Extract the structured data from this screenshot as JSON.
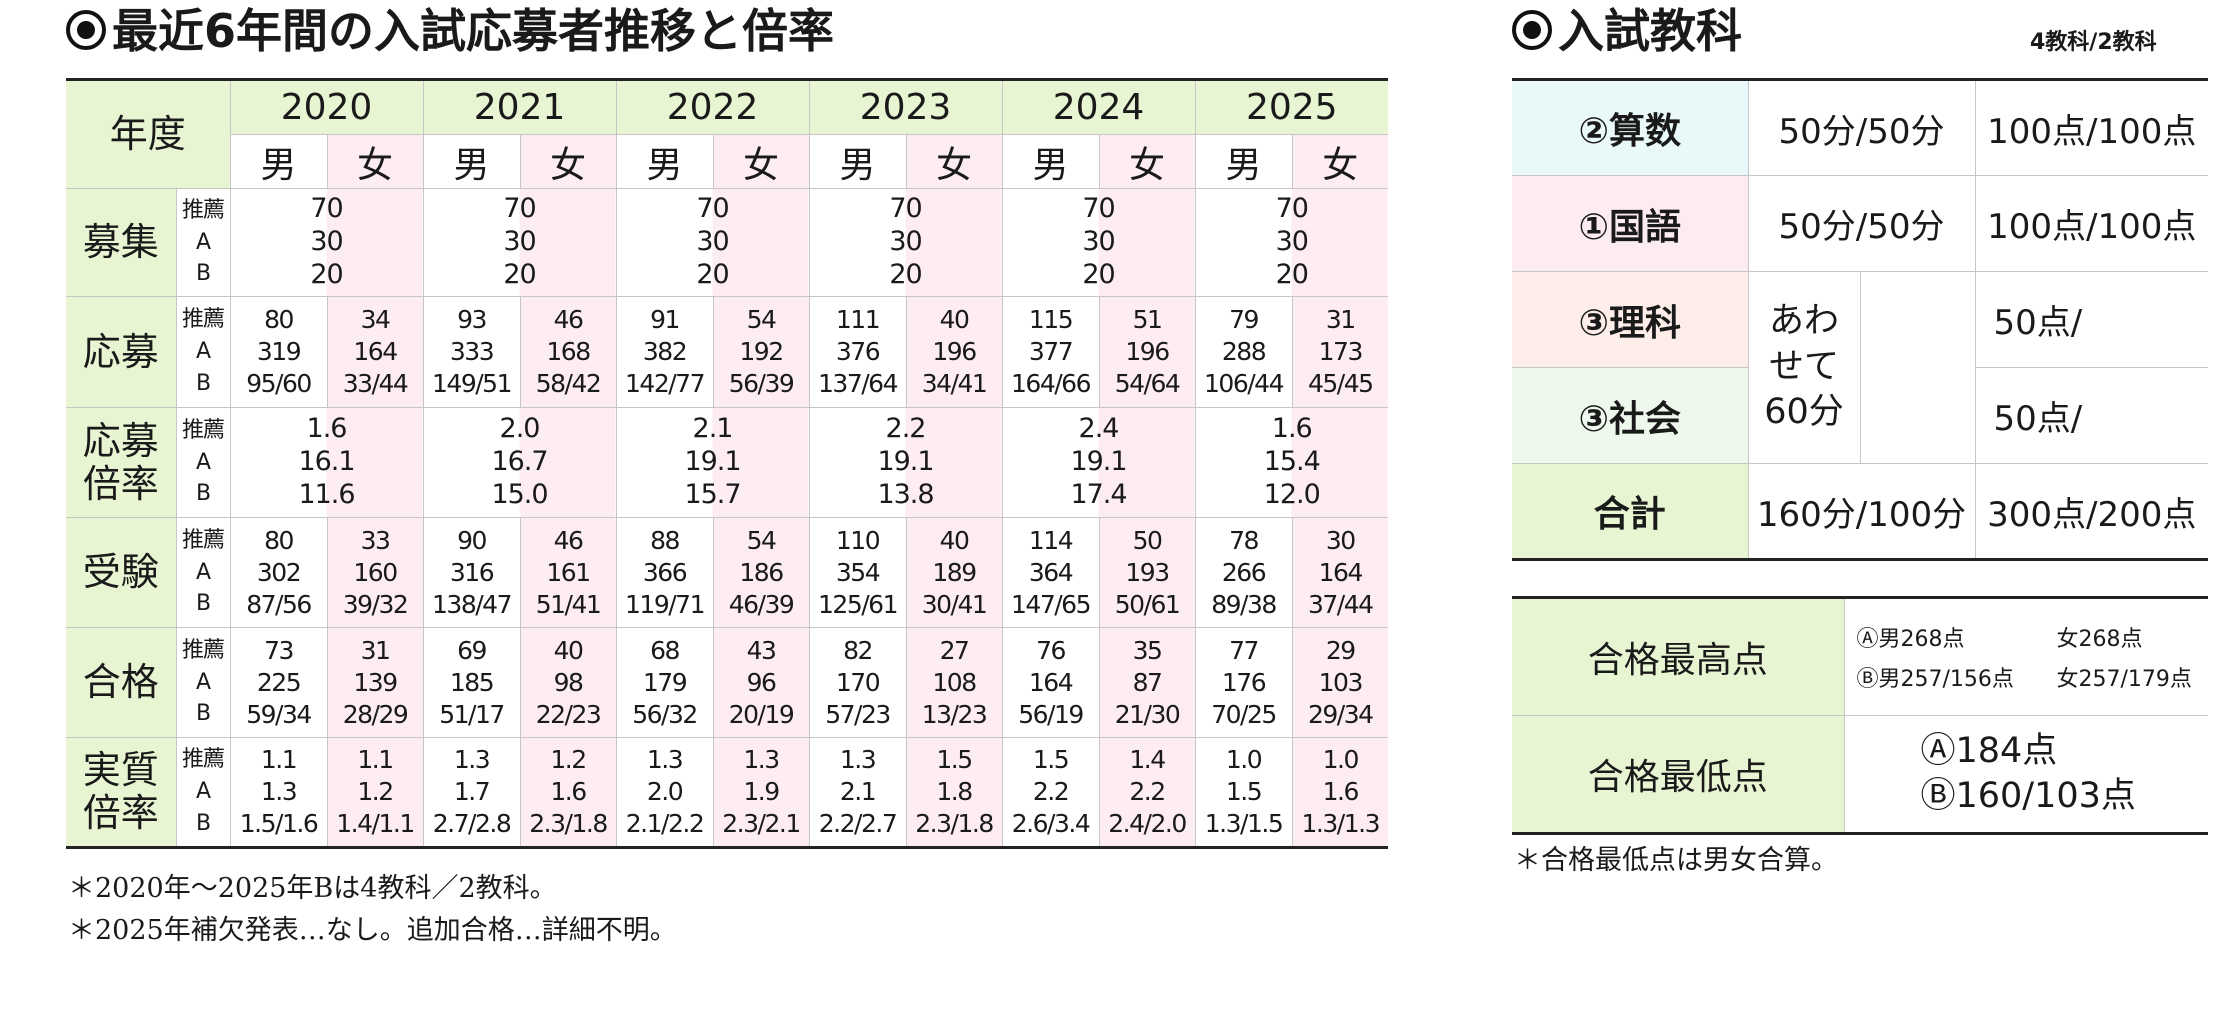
{
  "history": {
    "title": "最近6年間の入試応募者推移と倍率",
    "header_year_label": "年度",
    "male_label": "男",
    "female_label": "女",
    "years": [
      "2020",
      "2021",
      "2022",
      "2023",
      "2024",
      "2025"
    ],
    "rows": [
      {
        "label": "募集",
        "sub": "推薦\nA\nB",
        "merged": true,
        "values": [
          "70\n30\n20",
          "70\n30\n20",
          "70\n30\n20",
          "70\n30\n20",
          "70\n30\n20",
          "70\n30\n20"
        ]
      },
      {
        "label": "応募",
        "sub": "推薦\nA\nB",
        "merged": false,
        "values": [
          [
            "80\n319\n95/60",
            "34\n164\n33/44"
          ],
          [
            "93\n333\n149/51",
            "46\n168\n58/42"
          ],
          [
            "91\n382\n142/77",
            "54\n192\n56/39"
          ],
          [
            "111\n376\n137/64",
            "40\n196\n34/41"
          ],
          [
            "115\n377\n164/66",
            "51\n196\n54/64"
          ],
          [
            "79\n288\n106/44",
            "31\n173\n45/45"
          ]
        ]
      },
      {
        "label": "応募\n倍率",
        "sub": "推薦\nA\nB",
        "merged": true,
        "values": [
          "1.6\n16.1\n11.6",
          "2.0\n16.7\n15.0",
          "2.1\n19.1\n15.7",
          "2.2\n19.1\n13.8",
          "2.4\n19.1\n17.4",
          "1.6\n15.4\n12.0"
        ]
      },
      {
        "label": "受験",
        "sub": "推薦\nA\nB",
        "merged": false,
        "values": [
          [
            "80\n302\n87/56",
            "33\n160\n39/32"
          ],
          [
            "90\n316\n138/47",
            "46\n161\n51/41"
          ],
          [
            "88\n366\n119/71",
            "54\n186\n46/39"
          ],
          [
            "110\n354\n125/61",
            "40\n189\n30/41"
          ],
          [
            "114\n364\n147/65",
            "50\n193\n50/61"
          ],
          [
            "78\n266\n89/38",
            "30\n164\n37/44"
          ]
        ]
      },
      {
        "label": "合格",
        "sub": "推薦\nA\nB",
        "merged": false,
        "values": [
          [
            "73\n225\n59/34",
            "31\n139\n28/29"
          ],
          [
            "69\n185\n51/17",
            "40\n98\n22/23"
          ],
          [
            "68\n179\n56/32",
            "43\n96\n20/19"
          ],
          [
            "82\n170\n57/23",
            "27\n108\n13/23"
          ],
          [
            "76\n164\n56/19",
            "35\n87\n21/30"
          ],
          [
            "77\n176\n70/25",
            "29\n103\n29/34"
          ]
        ]
      },
      {
        "label": "実質\n倍率",
        "sub": "推薦\nA\nB",
        "merged": false,
        "values": [
          [
            "1.1\n1.3\n1.5/1.6",
            "1.1\n1.2\n1.4/1.1"
          ],
          [
            "1.3\n1.7\n2.7/2.8",
            "1.2\n1.6\n2.3/1.8"
          ],
          [
            "1.3\n2.0\n2.1/2.2",
            "1.3\n1.9\n2.3/2.1"
          ],
          [
            "1.3\n2.1\n2.2/2.7",
            "1.5\n1.8\n2.3/1.8"
          ],
          [
            "1.5\n2.2\n2.6/3.4",
            "1.4\n2.2\n2.4/2.0"
          ],
          [
            "1.0\n1.5\n1.3/1.5",
            "1.0\n1.6\n1.3/1.3"
          ]
        ]
      }
    ],
    "notes": [
      "＊2020年～2025年Bは4教科／2教科。",
      "＊2025年補欠発表…なし。追加合格…詳細不明。"
    ]
  },
  "subjects": {
    "title": "入試教科",
    "subtitle": "4教科/2教科",
    "math": {
      "name": "②算数",
      "time": "50分/50分",
      "points": "100点/100点"
    },
    "japanese": {
      "name": "①国語",
      "time": "50分/50分",
      "points": "100点/100点"
    },
    "science": {
      "name": "③理科",
      "points": "50点/"
    },
    "social": {
      "name": "③社会",
      "points": "50点/"
    },
    "combined_time": "あわ\nせて\n60分",
    "total": {
      "name": "合計",
      "time": "160分/100分",
      "points": "300点/200点"
    }
  },
  "scores": {
    "highest_label": "合格最高点",
    "highest": {
      "a_male": "Ⓐ男268点",
      "a_female": "女268点",
      "b_male": "Ⓑ男257/156点",
      "b_female": "女257/179点"
    },
    "lowest_label": "合格最低点",
    "lowest_a": "Ⓐ184点",
    "lowest_b": "Ⓑ160/103点",
    "note": "＊合格最低点は男女合算。"
  }
}
